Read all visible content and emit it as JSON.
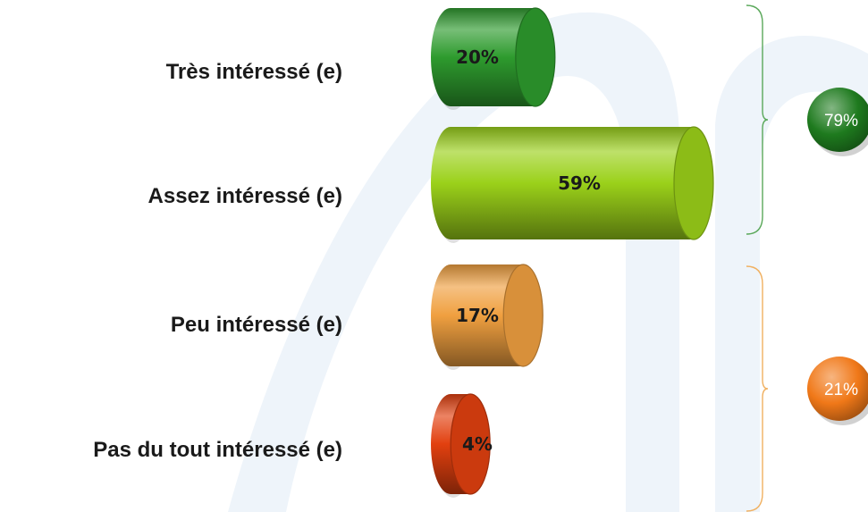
{
  "chart_data": {
    "type": "bar",
    "orientation": "horizontal",
    "style": "3d-cylinder",
    "categories": [
      "Très intéressé (e)",
      "Assez intéressé (e)",
      "Peu intéressé (e)",
      "Pas du tout intéressé (e)"
    ],
    "values": [
      20,
      59,
      17,
      4
    ],
    "value_labels": [
      "20%",
      "59%",
      "17%",
      "4%"
    ],
    "bar_colors": [
      "#2e9b2e",
      "#9bd11a",
      "#f0a040",
      "#e2400f"
    ],
    "groups": [
      {
        "label": "79%",
        "categories": [
          0,
          1
        ],
        "color": "#1e7a1e",
        "bracket_color": "#5aa85a"
      },
      {
        "label": "21%",
        "categories": [
          2,
          3
        ],
        "color": "#f07818",
        "bracket_color": "#f0b060"
      }
    ],
    "title": "",
    "xlabel": "",
    "ylabel": "",
    "xlim": [
      0,
      59
    ],
    "grid": false,
    "legend": "none"
  }
}
